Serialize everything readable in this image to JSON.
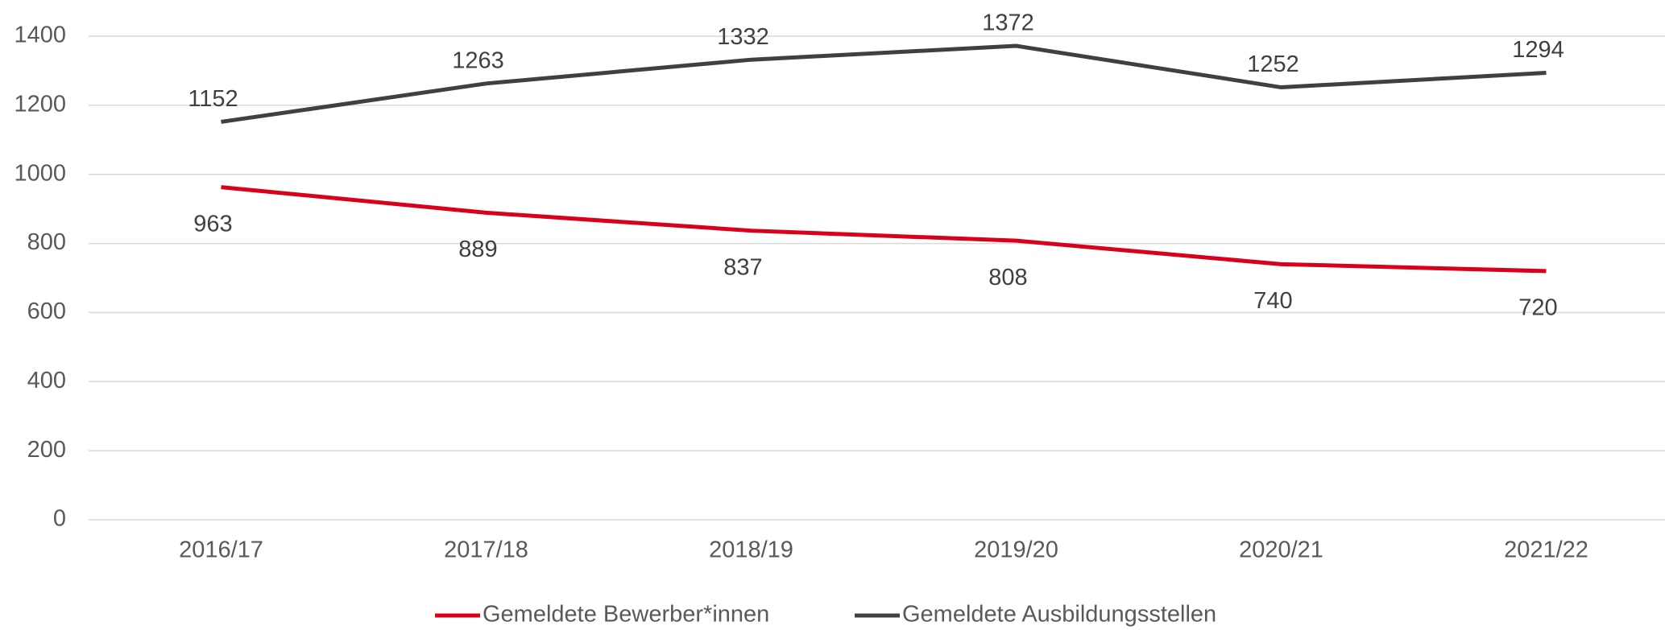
{
  "chart_data": {
    "type": "line",
    "categories": [
      "2016/17",
      "2017/18",
      "2018/19",
      "2019/20",
      "2020/21",
      "2021/22"
    ],
    "series": [
      {
        "name": "Gemeldete Bewerber*innen",
        "color": "#d9001b",
        "values": [
          963,
          889,
          837,
          808,
          740,
          720
        ]
      },
      {
        "name": "Gemeldete Ausbildungsstellen",
        "color": "#404040",
        "values": [
          1152,
          1263,
          1332,
          1372,
          1252,
          1294
        ]
      }
    ],
    "ylim": [
      0,
      1400
    ],
    "yticks": [
      0,
      200,
      400,
      600,
      800,
      1000,
      1200,
      1400
    ],
    "grid": true,
    "legend": "bottom"
  }
}
